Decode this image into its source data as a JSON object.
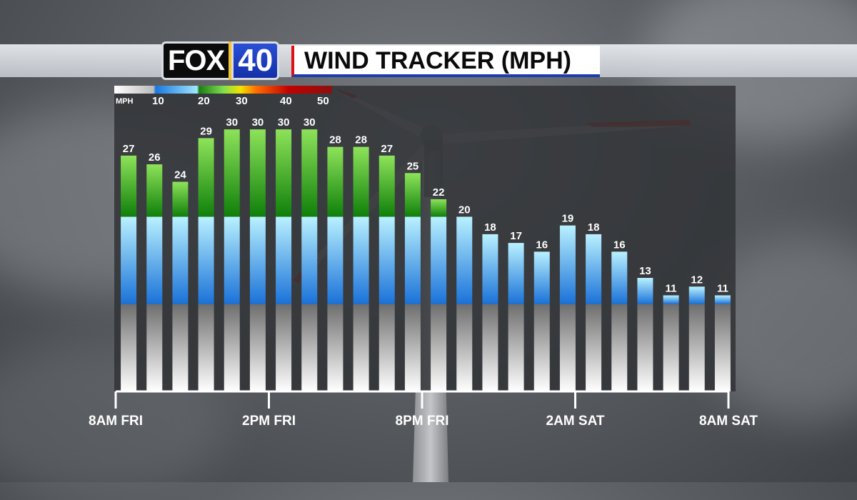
{
  "header": {
    "logo_word": "FOX",
    "logo_number": "40",
    "title": "WIND TRACKER (MPH)"
  },
  "legend": {
    "unit": "MPH",
    "labels": [
      "10",
      "20",
      "30",
      "40",
      "50"
    ]
  },
  "colors": {
    "low": "#f2f2f2",
    "blue": "#3b9ee8",
    "green": "#2fa81f",
    "title_border_red": "#d11111",
    "title_border_blue": "#1c3db0"
  },
  "chart_data": {
    "type": "bar",
    "values": [
      27,
      26,
      24,
      29,
      30,
      30,
      30,
      30,
      28,
      28,
      27,
      25,
      22,
      20,
      18,
      17,
      16,
      19,
      18,
      16,
      13,
      11,
      12,
      11
    ],
    "x_ticks": [
      "8AM FRI",
      "2PM FRI",
      "8PM FRI",
      "2AM SAT",
      "8AM SAT"
    ],
    "x_tick_hours": [
      0,
      6,
      12,
      18,
      24
    ],
    "ylim": [
      0,
      35
    ],
    "title": "WIND TRACKER (MPH)",
    "xlabel": "",
    "ylabel": ""
  }
}
